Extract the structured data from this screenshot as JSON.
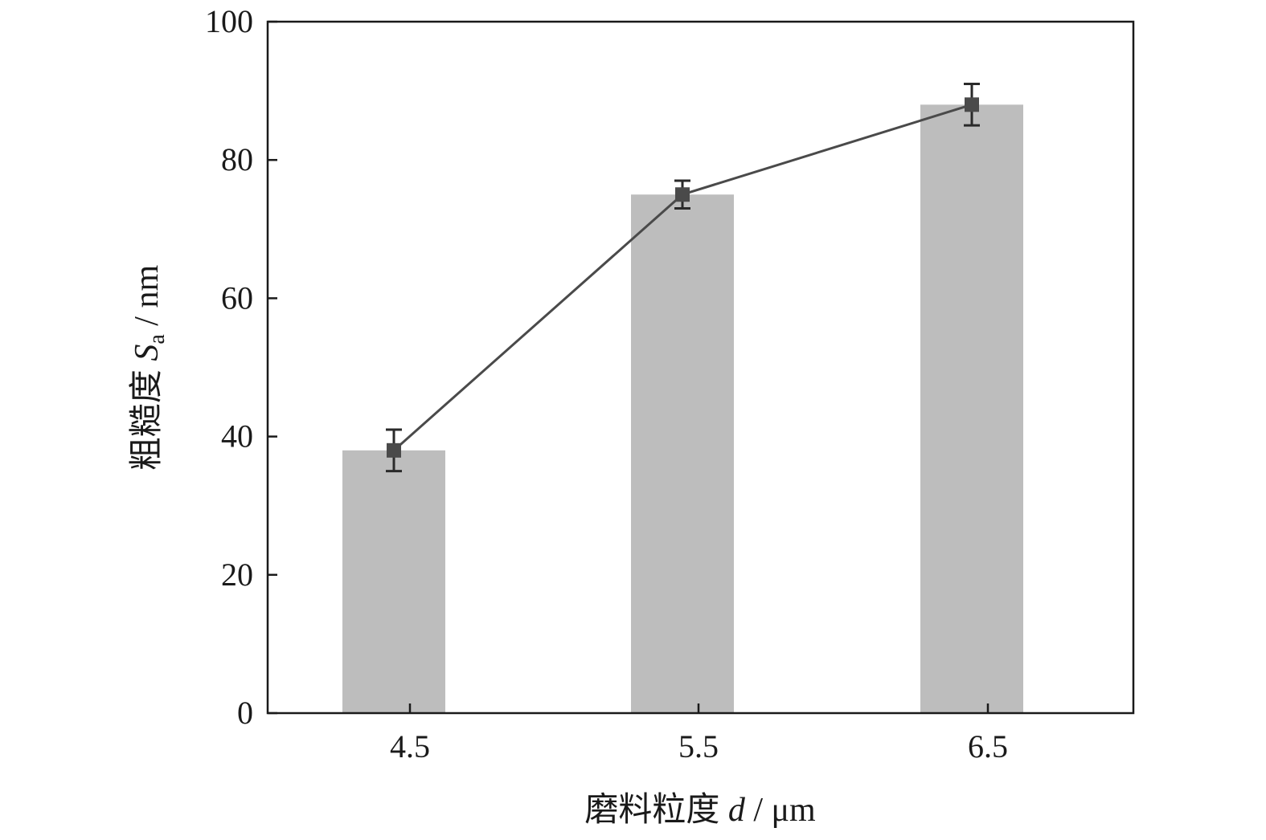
{
  "chart_data": {
    "type": "bar",
    "categories": [
      "4.5",
      "5.5",
      "6.5"
    ],
    "series": [
      {
        "type": "bar",
        "values": [
          38,
          75,
          88
        ]
      },
      {
        "type": "line",
        "values": [
          38,
          75,
          88
        ],
        "error": [
          3,
          2,
          3
        ]
      }
    ],
    "xlabel": {
      "prefix": "磨料粒度 ",
      "var": "d",
      "suffix": " / μm"
    },
    "ylabel": {
      "prefix": "粗糙度 ",
      "var": "S",
      "sub": "a",
      "suffix": " / nm"
    },
    "ylim": [
      0,
      100
    ],
    "yticks": [
      "0",
      "20",
      "40",
      "60",
      "80",
      "100"
    ],
    "grid": false,
    "colors": {
      "bar": "#bdbdbd",
      "line": "#4a4a4a",
      "axis": "#1a1a1a"
    }
  }
}
